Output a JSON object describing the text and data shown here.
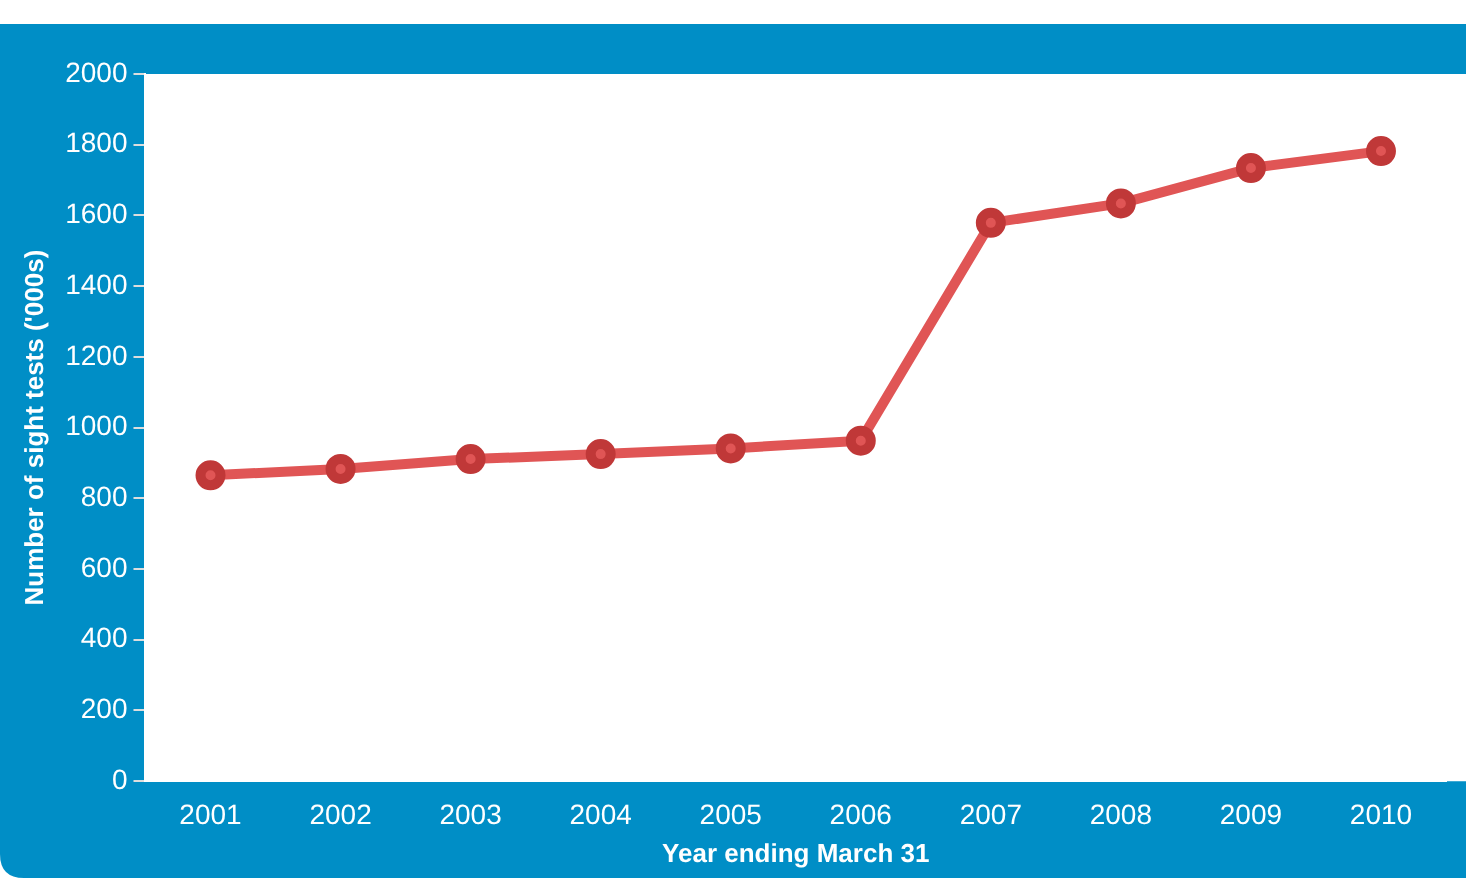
{
  "chart_data": {
    "type": "line",
    "xlabel": "Year ending March 31",
    "ylabel": "Number of sight tests ('000s)",
    "categories": [
      "2001",
      "2002",
      "2003",
      "2004",
      "2005",
      "2006",
      "2007",
      "2008",
      "2009",
      "2010"
    ],
    "series": [
      {
        "color": "#e05555",
        "values": [
          865,
          883,
          911,
          925,
          941,
          963,
          1579,
          1634,
          1734,
          1782
        ]
      }
    ],
    "ylim": [
      0,
      2000
    ],
    "yticks": [
      0,
      200,
      400,
      600,
      800,
      1000,
      1200,
      1400,
      1600,
      1800,
      2000
    ],
    "grid": false,
    "legend": false,
    "marker": "circle",
    "line_style": "solid"
  }
}
